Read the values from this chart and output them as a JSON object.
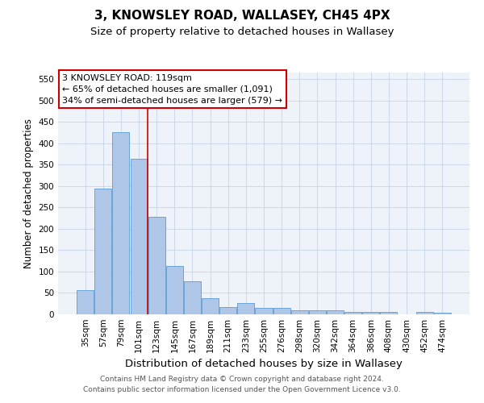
{
  "title": "3, KNOWSLEY ROAD, WALLASEY, CH45 4PX",
  "subtitle": "Size of property relative to detached houses in Wallasey",
  "xlabel": "Distribution of detached houses by size in Wallasey",
  "ylabel": "Number of detached properties",
  "footer_line1": "Contains HM Land Registry data © Crown copyright and database right 2024.",
  "footer_line2": "Contains public sector information licensed under the Open Government Licence v3.0.",
  "annotation_line1": "3 KNOWSLEY ROAD: 119sqm",
  "annotation_line2": "← 65% of detached houses are smaller (1,091)",
  "annotation_line3": "34% of semi-detached houses are larger (579) →",
  "bar_labels": [
    "35sqm",
    "57sqm",
    "79sqm",
    "101sqm",
    "123sqm",
    "145sqm",
    "167sqm",
    "189sqm",
    "211sqm",
    "233sqm",
    "255sqm",
    "276sqm",
    "298sqm",
    "320sqm",
    "342sqm",
    "364sqm",
    "386sqm",
    "408sqm",
    "430sqm",
    "452sqm",
    "474sqm"
  ],
  "bar_values": [
    57,
    293,
    425,
    363,
    228,
    113,
    77,
    38,
    17,
    27,
    15,
    16,
    10,
    9,
    9,
    5,
    5,
    5,
    0,
    5,
    4
  ],
  "bar_color": "#aec6e8",
  "bar_edge_color": "#5b9bd5",
  "vline_color": "#cc0000",
  "vline_x_index": 3.5,
  "ylim": [
    0,
    565
  ],
  "yticks": [
    0,
    50,
    100,
    150,
    200,
    250,
    300,
    350,
    400,
    450,
    500,
    550
  ],
  "grid_color": "#c8d4e8",
  "bg_color": "#eef2f9",
  "annotation_box_color": "#cc0000",
  "title_fontsize": 11,
  "subtitle_fontsize": 9.5,
  "xlabel_fontsize": 9.5,
  "ylabel_fontsize": 8.5,
  "tick_fontsize": 7.5,
  "annotation_fontsize": 8,
  "footer_fontsize": 6.5
}
